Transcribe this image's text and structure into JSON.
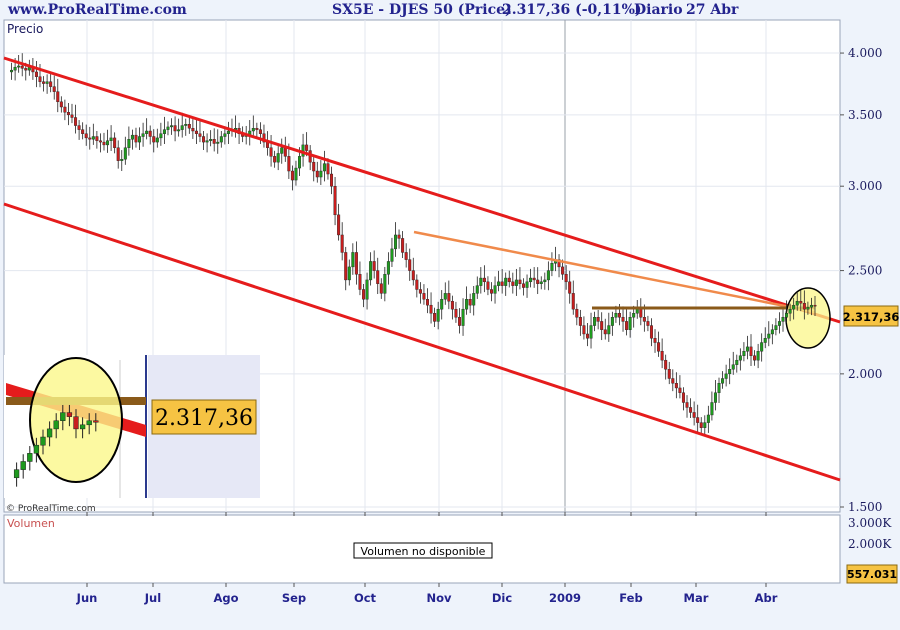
{
  "header": {
    "site": "www.ProRealTime.com",
    "instrument": "SX5E - DJES 50 (Price)",
    "quote": "2.317,36 (-0,11%)",
    "period": "Diario",
    "date": "27 Abr"
  },
  "price_panel": {
    "title": "Precio",
    "copyright": "© ProRealTime.com",
    "last_price_label": "2.317,36",
    "zoom_price_label": "2.317,36"
  },
  "volume_panel": {
    "title": "Volumen",
    "message": "Volumen no disponible",
    "last_volume_label": "557.031",
    "y_ticks": [
      "3.000K",
      "2.000K"
    ]
  },
  "colors": {
    "background": "#eef3fb",
    "plot_background": "#ffffff",
    "channel": "#e51c1c",
    "trendline": "#f08a4b",
    "resistance": "#8a5a1a",
    "highlight_circle": "#fbf78a",
    "up_candle": "#1e9a1e",
    "down_candle": "#c81e1e",
    "label_box": "#f6c343",
    "text": "#23238e"
  },
  "chart_data": {
    "type": "candlestick",
    "title": "SX5E - DJES 50 (Price)",
    "y_scale": "log",
    "ylim": [
      1500,
      4250
    ],
    "y_ticks": [
      {
        "v": 4000,
        "label": "4.000"
      },
      {
        "v": 3500,
        "label": "3.500"
      },
      {
        "v": 3000,
        "label": "3.000"
      },
      {
        "v": 2500,
        "label": "2.500"
      },
      {
        "v": 2000,
        "label": "2.000"
      },
      {
        "v": 1500,
        "label": "1.500"
      }
    ],
    "x_ticks": [
      "Jun",
      "Jul",
      "Ago",
      "Sep",
      "Oct",
      "Nov",
      "Dic",
      "2009",
      "Feb",
      "Mar",
      "Abr"
    ],
    "last_value": 2317.36,
    "change_pct": -0.11,
    "series": [
      {
        "month": "May",
        "points": [
          3840,
          3855,
          3880,
          3890,
          3870,
          3855,
          3880,
          3840,
          3800,
          3760,
          3745,
          3760
        ]
      },
      {
        "month": "Jun",
        "points": [
          3720,
          3680,
          3600,
          3560,
          3520,
          3500,
          3480,
          3420,
          3390,
          3360,
          3330,
          3320,
          3340,
          3310,
          3300,
          3280,
          3310,
          3330,
          3260,
          3170
        ]
      },
      {
        "month": "Jul",
        "points": [
          3180,
          3260,
          3320,
          3350,
          3300,
          3340,
          3360,
          3380,
          3340,
          3300,
          3330,
          3360,
          3390,
          3410,
          3420,
          3380,
          3390,
          3420,
          3430,
          3400
        ]
      },
      {
        "month": "Ago",
        "points": [
          3380,
          3360,
          3340,
          3300,
          3310,
          3320,
          3290,
          3300,
          3340,
          3360,
          3380,
          3390,
          3400,
          3360,
          3340,
          3350,
          3380,
          3400,
          3390,
          3360
        ]
      },
      {
        "month": "Sep",
        "points": [
          3300,
          3260,
          3200,
          3160,
          3220,
          3260,
          3200,
          3100,
          3040,
          3120,
          3200,
          3280,
          3240,
          3160,
          3100,
          3060,
          3100,
          3150,
          3080,
          3000
        ]
      },
      {
        "month": "Oct",
        "points": [
          2820,
          2700,
          2600,
          2450,
          2520,
          2600,
          2480,
          2400,
          2350,
          2450,
          2550,
          2500,
          2430,
          2380,
          2480,
          2550,
          2620,
          2700,
          2680,
          2600
        ]
      },
      {
        "month": "Nov",
        "points": [
          2560,
          2500,
          2450,
          2400,
          2380,
          2350,
          2320,
          2280,
          2240,
          2300,
          2350,
          2380,
          2340,
          2300,
          2260,
          2220,
          2300,
          2350,
          2320,
          2380
        ]
      },
      {
        "month": "Dic",
        "points": [
          2420,
          2460,
          2440,
          2400,
          2380,
          2420,
          2440,
          2420,
          2460,
          2440,
          2420,
          2450,
          2430,
          2410,
          2440,
          2460,
          2450,
          2430,
          2440,
          2450
        ]
      },
      {
        "month": "2009",
        "points": [
          2500,
          2540,
          2560,
          2520,
          2480,
          2440,
          2380,
          2300,
          2260,
          2220,
          2180,
          2160,
          2220,
          2260,
          2240,
          2200,
          2180,
          2220,
          2260,
          2280
        ]
      },
      {
        "month": "Feb",
        "points": [
          2260,
          2240,
          2200,
          2260,
          2280,
          2300,
          2260,
          2240,
          2220,
          2160,
          2140,
          2100,
          2060,
          2020,
          1980,
          1960,
          1940,
          1920,
          1880,
          1860
        ]
      },
      {
        "month": "Mar",
        "points": [
          1840,
          1820,
          1800,
          1780,
          1800,
          1830,
          1880,
          1920,
          1960,
          1980,
          2000,
          2020,
          2040,
          2060,
          2080,
          2100,
          2120,
          2080,
          2060,
          2100
        ]
      },
      {
        "month": "Abr",
        "points": [
          2140,
          2160,
          2180,
          2200,
          2220,
          2240,
          2260,
          2280,
          2300,
          2320,
          2340,
          2330,
          2300,
          2310,
          2320,
          2317
        ]
      }
    ],
    "overlays": {
      "channel_upper": {
        "from": [
          "May",
          4200
        ],
        "to": [
          "end",
          2280
        ]
      },
      "channel_lower": {
        "from": [
          "May",
          3000
        ],
        "to": [
          "end",
          1610
        ]
      },
      "trendline": {
        "from": [
          "Oct",
          2780
        ],
        "to": [
          "Abr",
          2330
        ]
      },
      "resistance": {
        "level": 2330,
        "from": "Ene",
        "to": "Abr"
      }
    }
  }
}
